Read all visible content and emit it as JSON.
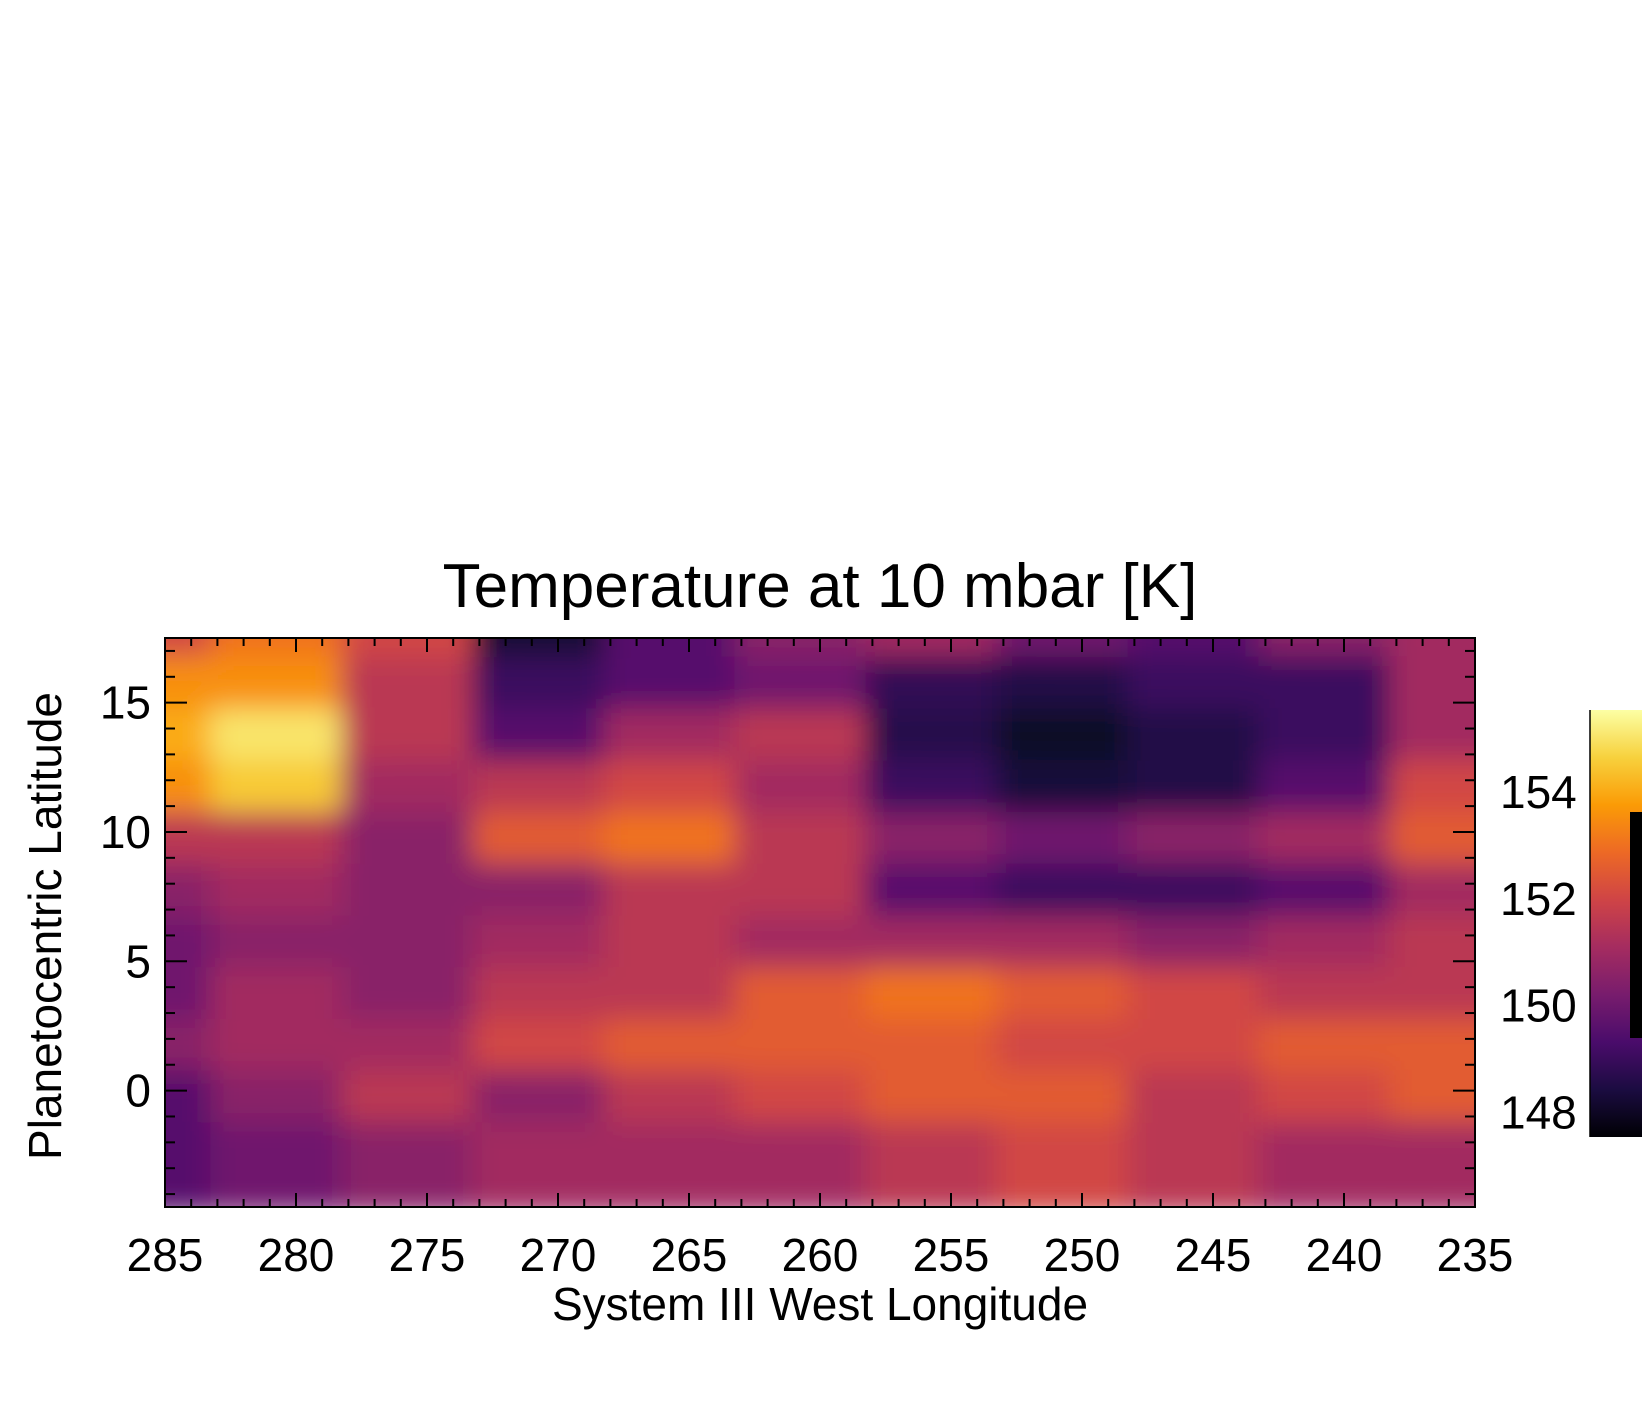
{
  "chart_data": {
    "type": "heatmap",
    "title": "Temperature at 10 mbar [K]",
    "xlabel": "System III West Longitude",
    "ylabel": "Planetocentric Latitude",
    "xlim": [
      285,
      235
    ],
    "ylim": [
      -4.5,
      17.5
    ],
    "xticks": [
      285,
      280,
      275,
      270,
      265,
      260,
      255,
      250,
      245,
      240,
      235
    ],
    "yticks": [
      0,
      5,
      10,
      15
    ],
    "colorbar": {
      "range": [
        147.5,
        155.5
      ],
      "ticks": [
        148,
        150,
        152,
        154
      ],
      "colormap": [
        "#000004",
        "#1b0c41",
        "#4a0c6b",
        "#781c6d",
        "#a52c60",
        "#cf4446",
        "#ed6925",
        "#fb9b06",
        "#f7d13d",
        "#fcffa4"
      ]
    },
    "x": [
      285,
      280,
      275,
      270,
      265,
      260,
      255,
      250,
      245,
      240,
      235
    ],
    "y": [
      17,
      15,
      13,
      11,
      9,
      7,
      5,
      3,
      1,
      -1,
      -3
    ],
    "z": [
      [
        152.0,
        153.0,
        152.0,
        148.2,
        149.5,
        150.5,
        151.0,
        150.0,
        149.5,
        150.5,
        151.0
      ],
      [
        153.5,
        153.5,
        151.5,
        149.0,
        149.5,
        150.0,
        148.8,
        148.5,
        149.0,
        149.0,
        151.0
      ],
      [
        154.0,
        155.0,
        151.5,
        149.5,
        151.0,
        151.5,
        148.6,
        148.0,
        148.5,
        149.0,
        151.0
      ],
      [
        153.5,
        154.5,
        151.0,
        151.5,
        152.0,
        151.0,
        149.0,
        148.3,
        148.5,
        149.5,
        152.0
      ],
      [
        151.5,
        151.5,
        150.5,
        152.5,
        153.0,
        151.5,
        150.5,
        150.0,
        150.5,
        151.0,
        152.5
      ],
      [
        150.5,
        151.0,
        150.5,
        150.5,
        151.5,
        151.5,
        149.5,
        149.0,
        149.0,
        149.5,
        151.0
      ],
      [
        150.0,
        150.5,
        150.5,
        151.0,
        151.5,
        151.0,
        151.0,
        151.0,
        150.5,
        151.0,
        151.5
      ],
      [
        150.0,
        151.0,
        150.5,
        151.5,
        151.5,
        152.5,
        153.0,
        152.5,
        152.0,
        151.5,
        151.5
      ],
      [
        150.5,
        151.0,
        151.0,
        152.0,
        152.5,
        152.5,
        152.5,
        152.0,
        152.0,
        152.5,
        152.5
      ],
      [
        149.5,
        150.5,
        151.5,
        150.5,
        151.5,
        152.0,
        152.5,
        152.5,
        151.5,
        152.0,
        152.5
      ],
      [
        149.5,
        150.0,
        150.5,
        151.0,
        151.0,
        151.0,
        151.5,
        152.0,
        151.5,
        151.0,
        151.0
      ]
    ]
  }
}
